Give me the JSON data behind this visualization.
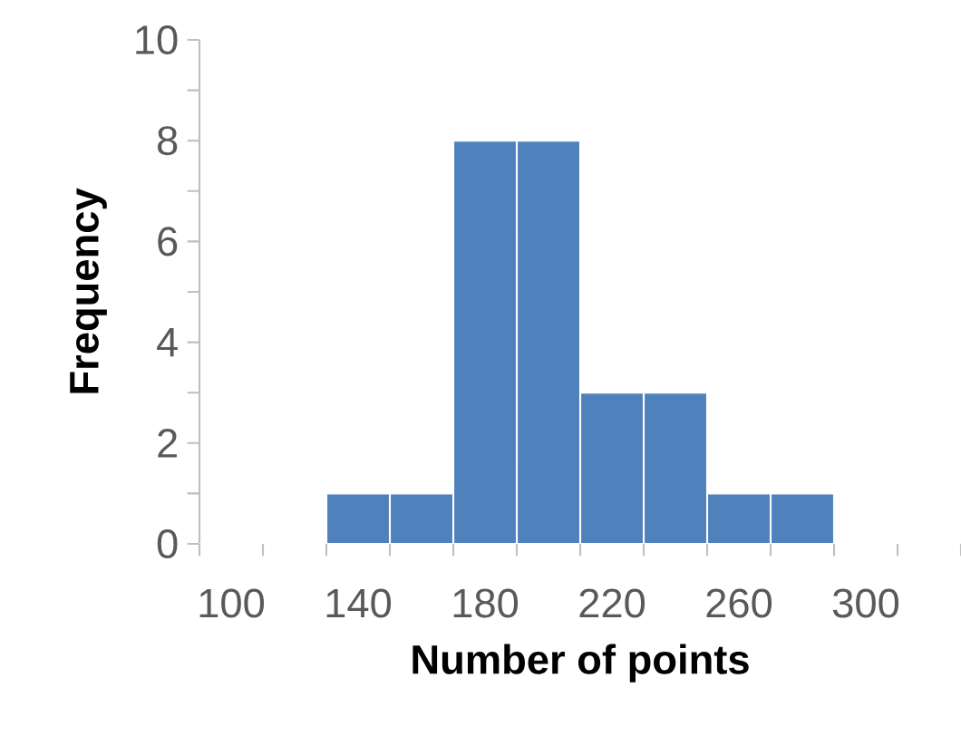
{
  "chart_data": {
    "type": "histogram",
    "xlabel": "Number of points",
    "ylabel": "Frequency",
    "bins": [
      90,
      110,
      130,
      150,
      170,
      190,
      210,
      230,
      250,
      270,
      290,
      310,
      330
    ],
    "values": [
      0,
      0,
      1,
      1,
      8,
      8,
      3,
      3,
      1,
      1,
      0,
      0
    ],
    "color": "#4f81bd",
    "xlim": [
      90,
      330
    ],
    "xticks": [
      100,
      140,
      180,
      220,
      260,
      300,
      {
        "value": 90,
        "label": null
      },
      {
        "value": 110,
        "label": null
      },
      {
        "value": 130,
        "label": null
      },
      {
        "value": 150,
        "label": null
      },
      {
        "value": 170,
        "label": null
      },
      {
        "value": 190,
        "label": null
      },
      {
        "value": 210,
        "label": null
      },
      {
        "value": 230,
        "label": null
      },
      {
        "value": 250,
        "label": null
      },
      {
        "value": 270,
        "label": null
      },
      {
        "value": 290,
        "label": null
      },
      {
        "value": 310,
        "label": null
      },
      {
        "value": 330,
        "label": null
      }
    ],
    "ylim": [
      0,
      10
    ],
    "yticks": [
      0,
      2,
      4,
      6,
      8,
      10
    ],
    "grid": false
  }
}
